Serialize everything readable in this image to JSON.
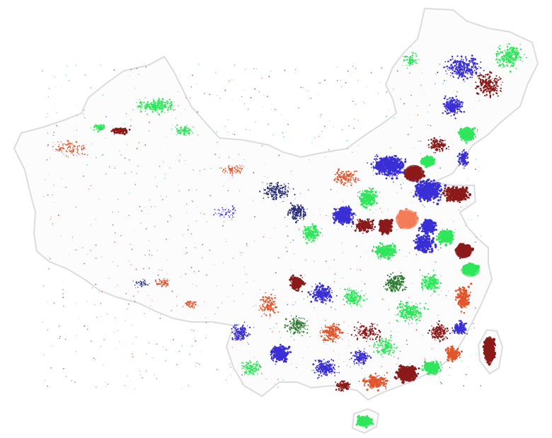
{
  "map": {
    "region": "China",
    "background_color": "#ffffff",
    "outline_color": "#d9d9d9",
    "cluster_colors": {
      "bright-green": "#2ee65a",
      "dark-green": "#2f7d32",
      "blue": "#3a2fd6",
      "navy": "#2b2f7a",
      "dark-red": "#8b1a1a",
      "orange-red": "#e2542a",
      "salmon": "#f47c5a"
    }
  }
}
